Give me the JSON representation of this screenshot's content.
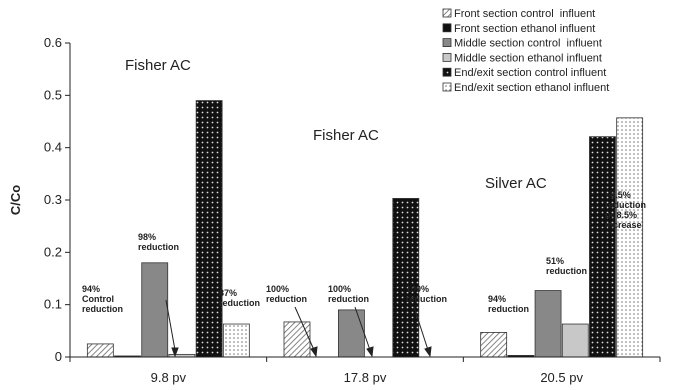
{
  "chart_data": {
    "type": "bar",
    "ylabel": "C/Co",
    "ylim": [
      0,
      0.6
    ],
    "yticks": [
      "0",
      "0.1",
      "0.2",
      "0.3",
      "0.4",
      "0.5",
      "0.6"
    ],
    "categories": [
      "9.8 pv",
      "17.8 pv",
      "20.5 pv"
    ],
    "series": [
      {
        "name": "Front section control  influent",
        "values": [
          0.025,
          0.067,
          0.047
        ],
        "color": "#ffffff",
        "pattern": "diag-light"
      },
      {
        "name": "Front section ethanol influent",
        "values": [
          0.002,
          0.0,
          0.003
        ],
        "color": "#111111",
        "pattern": "solid-black"
      },
      {
        "name": "Middle section control  influent",
        "values": [
          0.18,
          0.09,
          0.127
        ],
        "color": "#888888",
        "pattern": "solid-gray"
      },
      {
        "name": "Middle section ethanol influent",
        "values": [
          0.005,
          0.0,
          0.063
        ],
        "color": "#c8c8c8",
        "pattern": "solid-lightgray"
      },
      {
        "name": "End/exit section control influent",
        "values": [
          0.49,
          0.303,
          0.421
        ],
        "color": "#111111",
        "pattern": "dots-dark"
      },
      {
        "name": "End/exit section ethanol influent",
        "values": [
          0.063,
          0.0,
          0.457
        ],
        "color": "#ffffff",
        "pattern": "dots-light"
      }
    ],
    "group_titles": [
      "Fisher AC",
      "Fisher AC",
      "Silver AC"
    ],
    "annotations": [
      [
        "94%",
        "Control",
        "reduction"
      ],
      [
        "98%",
        "reduction"
      ],
      [
        "87%",
        "reduction"
      ],
      [
        "100%",
        "reduction"
      ],
      [
        "100%",
        "reduction"
      ],
      [
        "100%",
        "reduction"
      ],
      [
        "94%",
        "reduction"
      ],
      [
        "51%",
        "reduction"
      ],
      [
        "−8.5%",
        "reduction",
        "or 8.5%",
        "increase"
      ]
    ]
  }
}
